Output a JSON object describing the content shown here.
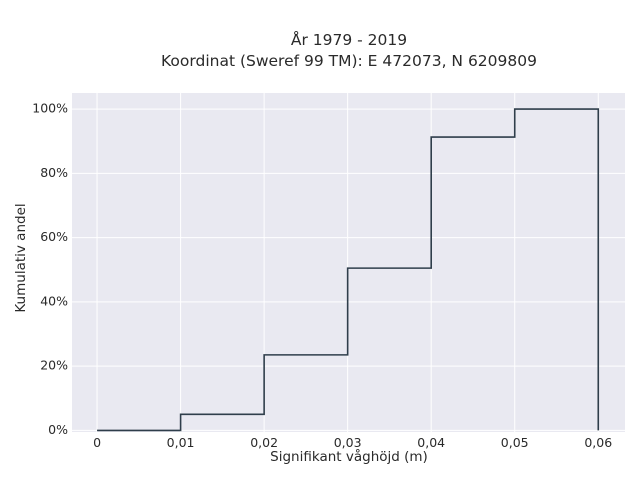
{
  "chart_data": {
    "type": "line",
    "step": "post",
    "title": "År 1979 - 2019",
    "subtitle": "Koordinat (Sweref 99 TM): E 472073, N 6209809",
    "xlabel": "Signifikant våghöjd (m)",
    "ylabel": "Kumulativ andel",
    "xlim": [
      -0.003,
      0.0632
    ],
    "ylim": [
      -0.005,
      1.05
    ],
    "x_ticks": [
      0,
      0.01,
      0.02,
      0.03,
      0.04,
      0.05,
      0.06
    ],
    "x_tick_labels": [
      "0",
      "0,01",
      "0,02",
      "0,03",
      "0,04",
      "0,05",
      "0,06"
    ],
    "y_ticks": [
      0,
      0.2,
      0.4,
      0.6,
      0.8,
      1.0
    ],
    "y_tick_labels": [
      "0%",
      "20%",
      "40%",
      "60%",
      "80%",
      "100%"
    ],
    "grid": true,
    "legend": "none",
    "colors": {
      "plot_bg": "#e9e9f1",
      "grid": "#ffffff",
      "line": "#2f3e4b"
    },
    "series": [
      {
        "x": [
          0,
          0.01,
          0.02,
          0.03,
          0.04,
          0.05,
          0.06,
          0.06
        ],
        "y": [
          0,
          0.05,
          0.235,
          0.505,
          0.913,
          1.0,
          1.0,
          0
        ]
      }
    ]
  }
}
